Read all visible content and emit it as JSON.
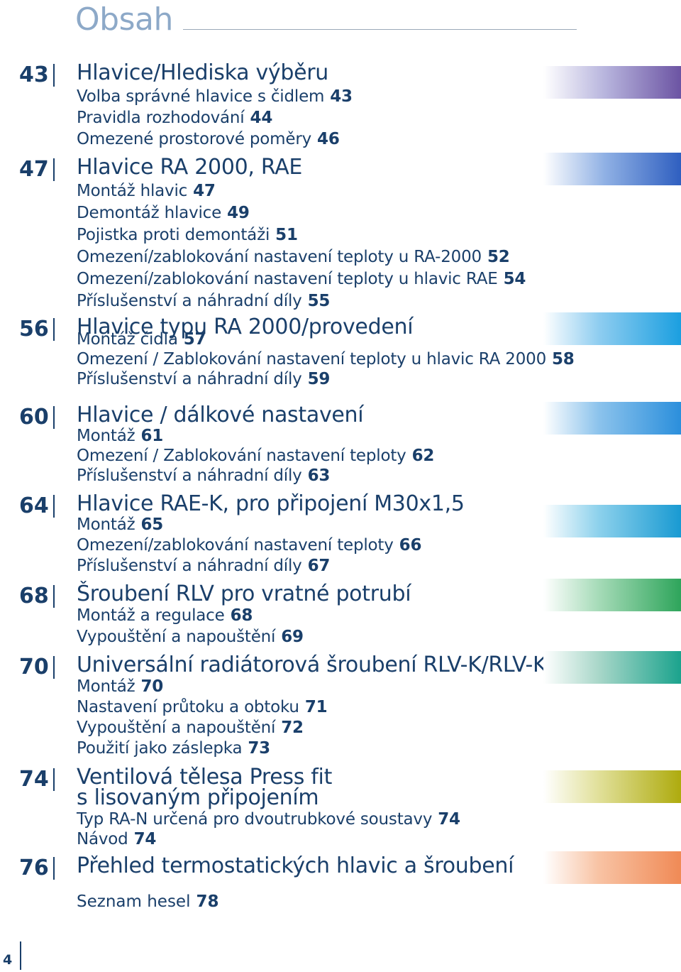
{
  "title": "Obsah",
  "page_number": "4",
  "sections": [
    {
      "num": "43",
      "title": [
        "Hlavice/Hlediska výběru"
      ],
      "items": [
        {
          "label": "Volba správné hlavice s čidlem",
          "page": "43"
        },
        {
          "label": "Pravidla rozhodování",
          "page": "44"
        },
        {
          "label": "Omezené prostorové poměry",
          "page": "46"
        }
      ]
    },
    {
      "num": "47",
      "title": [
        "Hlavice RA 2000, RAE"
      ],
      "items": [
        {
          "label": "Montáž hlavic",
          "page": "47"
        },
        {
          "label": "Demontáž hlavice",
          "page": "49"
        },
        {
          "label": "Pojistka proti demontáži",
          "page": "51"
        },
        {
          "label": "Omezení/zablokování nastavení teploty u RA-2000",
          "page": "52"
        },
        {
          "label": "Omezení/zablokování nastavení teploty u hlavic RAE",
          "page": "54"
        },
        {
          "label": "Příslušenství a náhradní díly",
          "page": "55"
        }
      ]
    },
    {
      "num": "56",
      "title": [
        "Hlavice typu RA 2000/provedení"
      ],
      "items": [
        {
          "label": "Montáž čidla",
          "page": "57"
        },
        {
          "label": "Omezení / Zablokování nastavení teploty u hlavic RA 2000",
          "page": "58"
        },
        {
          "label": "Příslušenství a náhradní díly",
          "page": "59"
        }
      ]
    },
    {
      "num": "60",
      "title": [
        "Hlavice / dálkové nastavení"
      ],
      "items": [
        {
          "label": "Montáž",
          "page": "61"
        },
        {
          "label": "Omezení / Zablokování nastavení teploty",
          "page": "62"
        },
        {
          "label": "Příslušenství a náhradní díly",
          "page": "63"
        }
      ]
    },
    {
      "num": "64",
      "title": [
        "Hlavice RAE-K, pro připojení M30x1,5"
      ],
      "items": [
        {
          "label": "Montáž",
          "page": "65"
        },
        {
          "label": "Omezení/zablokování nastavení teploty",
          "page": "66"
        },
        {
          "label": "Příslušenství a náhradní díly",
          "page": "67"
        }
      ]
    },
    {
      "num": "68",
      "title": [
        "Šroubení RLV pro vratné potrubí"
      ],
      "items": [
        {
          "label": "Montáž a regulace",
          "page": "68"
        },
        {
          "label": "Vypouštění a napouštění",
          "page": "69"
        }
      ]
    },
    {
      "num": "70",
      "title": [
        "Universální radiátorová šroubení RLV-K/RLV-KS"
      ],
      "items": [
        {
          "label": "Montáž",
          "page": "70"
        },
        {
          "label": "Nastavení průtoku a obtoku",
          "page": "71"
        },
        {
          "label": "Vypouštění a napouštění",
          "page": "72"
        },
        {
          "label": "Použití jako záslepka",
          "page": "73"
        }
      ]
    },
    {
      "num": "74",
      "title": [
        "Ventilová tělesa Press fit",
        "s lisovaným připojením"
      ],
      "items": [
        {
          "label": "Typ RA-N určená pro dvoutrubkové soustavy",
          "page": "74"
        },
        {
          "label": "Návod",
          "page": "74"
        }
      ]
    },
    {
      "num": "76",
      "title": [
        "Přehled termostatických hlavic a šroubení"
      ],
      "items": []
    }
  ],
  "footer_item": {
    "label": "Seznam hesel",
    "page": "78"
  },
  "bar_colors": [
    "#6c54a3",
    "#2f5fc0",
    "#1b9fe0",
    "#2b8fdc",
    "#199ad2",
    "#2ea55b",
    "#1ba38d",
    "#aeab0e",
    "#f08a56"
  ]
}
